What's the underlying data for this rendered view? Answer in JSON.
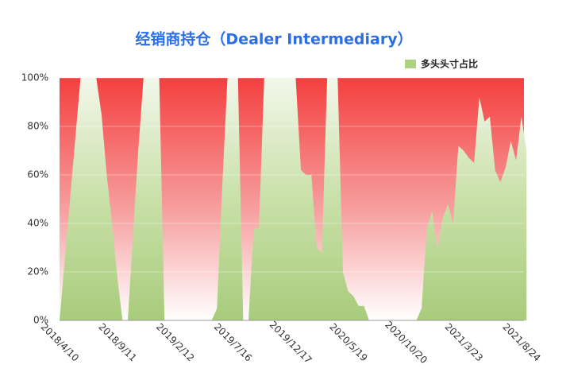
{
  "chart_data": {
    "type": "area",
    "title": "经销商持仓（Dealer Intermediary）",
    "categories": [
      "2018/4/10",
      null,
      null,
      null,
      null,
      null,
      null,
      null,
      null,
      null,
      null,
      "2018/9/11",
      null,
      null,
      null,
      null,
      null,
      null,
      null,
      null,
      null,
      null,
      "2019/2/12",
      null,
      null,
      null,
      null,
      null,
      null,
      null,
      null,
      null,
      null,
      "2019/7/16",
      null,
      null,
      null,
      null,
      null,
      null,
      null,
      null,
      null,
      null,
      "2019/12/17",
      null,
      null,
      null,
      null,
      null,
      null,
      null,
      null,
      null,
      null,
      "2020/5/19",
      null,
      null,
      null,
      null,
      null,
      null,
      null,
      null,
      null,
      null,
      "2020/10/20",
      null,
      null,
      null,
      null,
      null,
      null,
      null,
      null,
      null,
      null,
      "2021/3/23",
      null,
      null,
      null,
      null,
      null,
      null,
      null,
      null,
      null,
      null,
      "2021/8/24",
      null
    ],
    "series": [
      {
        "name": "多头头寸占比",
        "color": "#aed184",
        "values": [
          0,
          25,
          50,
          75,
          100,
          100,
          100,
          100,
          85,
          60,
          40,
          18,
          0,
          0,
          35,
          70,
          100,
          100,
          100,
          100,
          0,
          0,
          0,
          0,
          0,
          0,
          0,
          0,
          0,
          0,
          5,
          55,
          100,
          100,
          100,
          0,
          0,
          38,
          38,
          100,
          100,
          100,
          100,
          100,
          100,
          100,
          62,
          60,
          60,
          30,
          28,
          100,
          100,
          100,
          20,
          12,
          10,
          6,
          6,
          0,
          0,
          0,
          0,
          0,
          0,
          0,
          0,
          0,
          0,
          5,
          38,
          45,
          30,
          42,
          48,
          40,
          72,
          70,
          67,
          65,
          92,
          82,
          84,
          62,
          57,
          63,
          74,
          66,
          84,
          70
        ]
      }
    ],
    "ylim": [
      0,
      100
    ],
    "yticks": [
      {
        "value": 0,
        "label": "0%"
      },
      {
        "value": 20,
        "label": "20%"
      },
      {
        "value": 40,
        "label": "40%"
      },
      {
        "value": 60,
        "label": "60%"
      },
      {
        "value": 80,
        "label": "80%"
      },
      {
        "value": 100,
        "label": "100%"
      }
    ],
    "grid": true,
    "legend": "top-right"
  }
}
